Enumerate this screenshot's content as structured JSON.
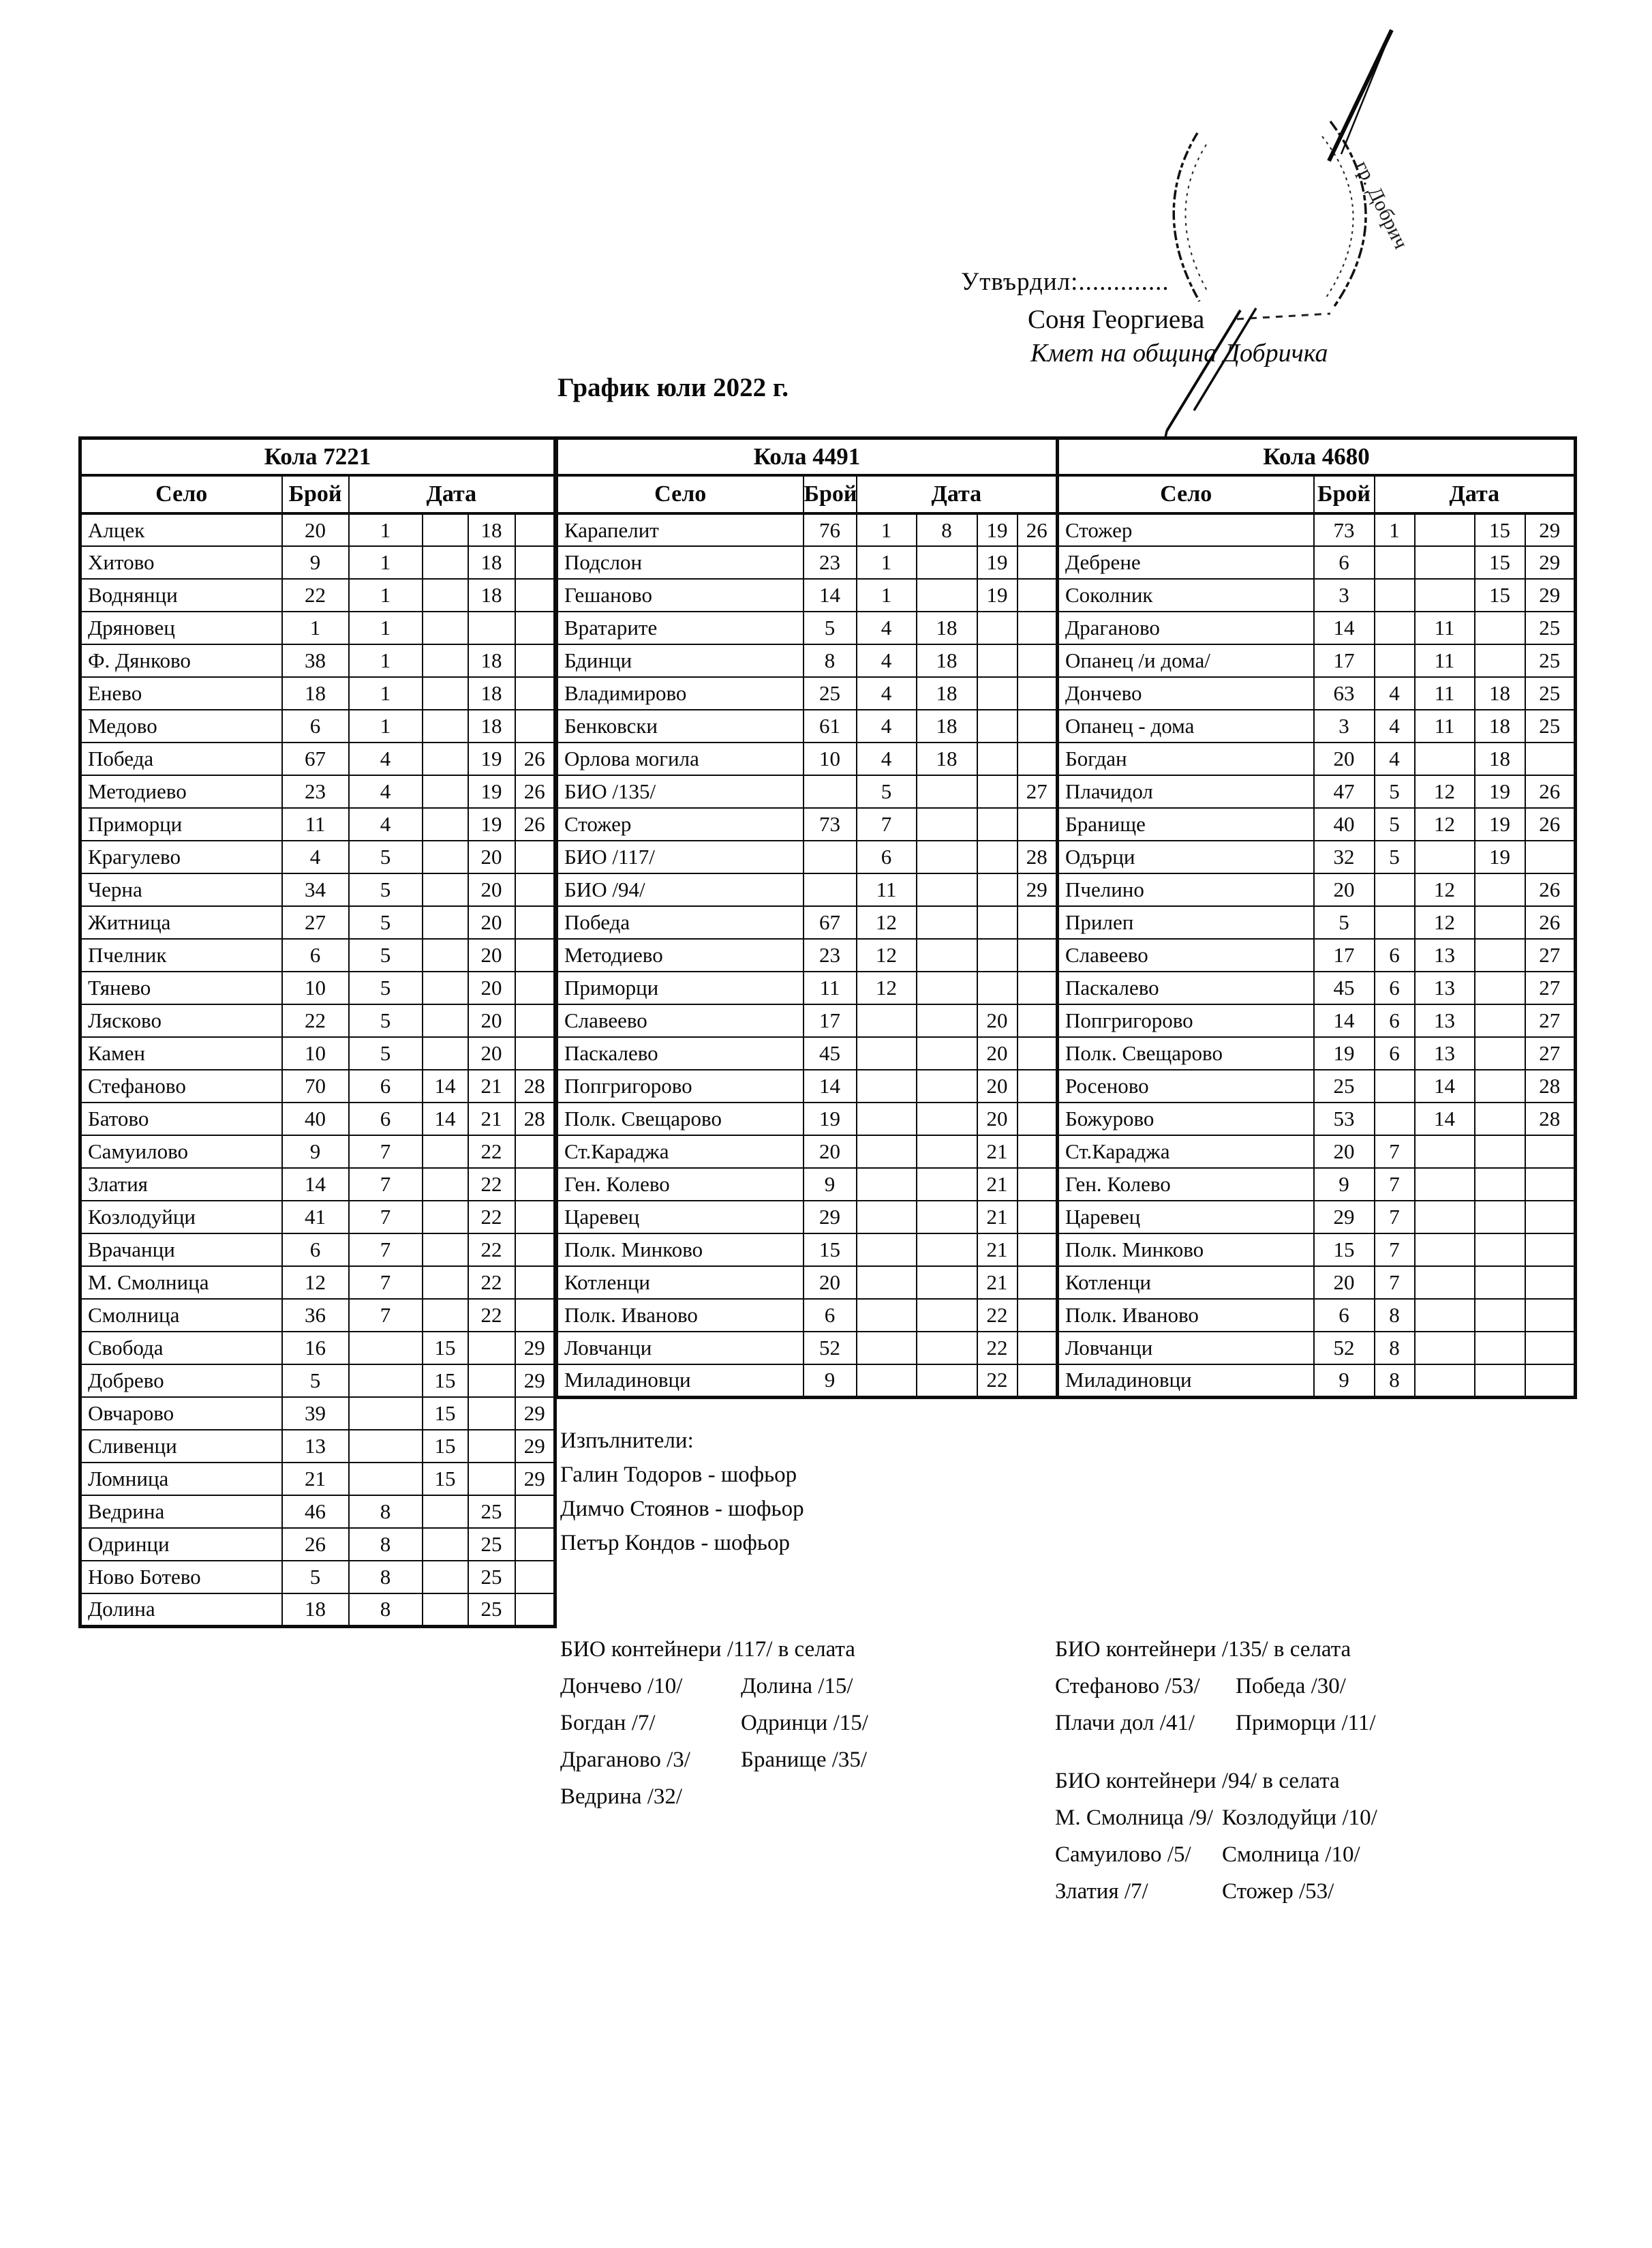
{
  "header": {
    "approved_label": "Утвърдил:.............",
    "approver_name": "Соня Георгиева",
    "approver_title": "Кмет  на община Добричка",
    "stamp_text": "гр. Добрич"
  },
  "title": "График юли 2022 г.",
  "table": {
    "headers": {
      "village": "Село",
      "count": "Брой",
      "date": "Дата"
    },
    "sections": [
      {
        "car": "Кола 7221",
        "rows": [
          [
            "Алцек",
            "20",
            "1",
            "",
            "18",
            ""
          ],
          [
            "Хитово",
            "9",
            "1",
            "",
            "18",
            ""
          ],
          [
            "Воднянци",
            "22",
            "1",
            "",
            "18",
            ""
          ],
          [
            "Дряновец",
            "1",
            "1",
            "",
            "",
            ""
          ],
          [
            "Ф. Дянково",
            "38",
            "1",
            "",
            "18",
            ""
          ],
          [
            "Енево",
            "18",
            "1",
            "",
            "18",
            ""
          ],
          [
            "Медово",
            "6",
            "1",
            "",
            "18",
            ""
          ],
          [
            "Победа",
            "67",
            "4",
            "",
            "19",
            "26"
          ],
          [
            "Методиево",
            "23",
            "4",
            "",
            "19",
            "26"
          ],
          [
            "Приморци",
            "11",
            "4",
            "",
            "19",
            "26"
          ],
          [
            "Крагулево",
            "4",
            "5",
            "",
            "20",
            ""
          ],
          [
            "Черна",
            "34",
            "5",
            "",
            "20",
            ""
          ],
          [
            "Житница",
            "27",
            "5",
            "",
            "20",
            ""
          ],
          [
            "Пчелник",
            "6",
            "5",
            "",
            "20",
            ""
          ],
          [
            "Тянево",
            "10",
            "5",
            "",
            "20",
            ""
          ],
          [
            "Лясково",
            "22",
            "5",
            "",
            "20",
            ""
          ],
          [
            "Камен",
            "10",
            "5",
            "",
            "20",
            ""
          ],
          [
            "Стефаново",
            "70",
            "6",
            "14",
            "21",
            "28"
          ],
          [
            "Батово",
            "40",
            "6",
            "14",
            "21",
            "28"
          ],
          [
            "Самуилово",
            "9",
            "7",
            "",
            "22",
            ""
          ],
          [
            "Златия",
            "14",
            "7",
            "",
            "22",
            ""
          ],
          [
            "Козлодуйци",
            "41",
            "7",
            "",
            "22",
            ""
          ],
          [
            "Врачанци",
            "6",
            "7",
            "",
            "22",
            ""
          ],
          [
            "М. Смолница",
            "12",
            "7",
            "",
            "22",
            ""
          ],
          [
            "Смолница",
            "36",
            "7",
            "",
            "22",
            ""
          ],
          [
            "Свобода",
            "16",
            "",
            "15",
            "",
            "29"
          ],
          [
            "Добрево",
            "5",
            "",
            "15",
            "",
            "29"
          ],
          [
            "Овчарово",
            "39",
            "",
            "15",
            "",
            "29"
          ],
          [
            "Сливенци",
            "13",
            "",
            "15",
            "",
            "29"
          ],
          [
            "Ломница",
            "21",
            "",
            "15",
            "",
            "29"
          ],
          [
            "Ведрина",
            "46",
            "8",
            "",
            "25",
            ""
          ],
          [
            "Одринци",
            "26",
            "8",
            "",
            "25",
            ""
          ],
          [
            "Ново Ботево",
            "5",
            "8",
            "",
            "25",
            ""
          ],
          [
            "Долина",
            "18",
            "8",
            "",
            "25",
            ""
          ]
        ]
      },
      {
        "car": "Кола 4491",
        "rows": [
          [
            "Карапелит",
            "76",
            "1",
            "8",
            "19",
            "26"
          ],
          [
            "Подслон",
            "23",
            "1",
            "",
            "19",
            ""
          ],
          [
            "Гешаново",
            "14",
            "1",
            "",
            "19",
            ""
          ],
          [
            "Вратарите",
            "5",
            "4",
            "18",
            "",
            ""
          ],
          [
            "Бдинци",
            "8",
            "4",
            "18",
            "",
            ""
          ],
          [
            "Владимирово",
            "25",
            "4",
            "18",
            "",
            ""
          ],
          [
            "Бенковски",
            "61",
            "4",
            "18",
            "",
            ""
          ],
          [
            "Орлова могила",
            "10",
            "4",
            "18",
            "",
            ""
          ],
          [
            "БИО /135/",
            "",
            "5",
            "",
            "",
            "27"
          ],
          [
            "Стожер",
            "73",
            "7",
            "",
            "",
            ""
          ],
          [
            "БИО /117/",
            "",
            "6",
            "",
            "",
            "28"
          ],
          [
            "БИО /94/",
            "",
            "11",
            "",
            "",
            "29"
          ],
          [
            "Победа",
            "67",
            "12",
            "",
            "",
            ""
          ],
          [
            "Методиево",
            "23",
            "12",
            "",
            "",
            ""
          ],
          [
            "Приморци",
            "11",
            "12",
            "",
            "",
            ""
          ],
          [
            "Славеево",
            "17",
            "",
            "",
            "20",
            ""
          ],
          [
            "Паскалево",
            "45",
            "",
            "",
            "20",
            ""
          ],
          [
            "Попгригорово",
            "14",
            "",
            "",
            "20",
            ""
          ],
          [
            "Полк. Свещарово",
            "19",
            "",
            "",
            "20",
            ""
          ],
          [
            "Ст.Караджа",
            "20",
            "",
            "",
            "21",
            ""
          ],
          [
            "Ген. Колево",
            "9",
            "",
            "",
            "21",
            ""
          ],
          [
            "Царевец",
            "29",
            "",
            "",
            "21",
            ""
          ],
          [
            "Полк. Минково",
            "15",
            "",
            "",
            "21",
            ""
          ],
          [
            "Котленци",
            "20",
            "",
            "",
            "21",
            ""
          ],
          [
            "Полк. Иваново",
            "6",
            "",
            "",
            "22",
            ""
          ],
          [
            "Ловчанци",
            "52",
            "",
            "",
            "22",
            ""
          ],
          [
            "Миладиновци",
            "9",
            "",
            "",
            "22",
            ""
          ]
        ]
      },
      {
        "car": "Кола 4680",
        "rows": [
          [
            "Стожер",
            "73",
            "1",
            "",
            "15",
            "29"
          ],
          [
            "Дебрене",
            "6",
            "",
            "",
            "15",
            "29"
          ],
          [
            "Соколник",
            "3",
            "",
            "",
            "15",
            "29"
          ],
          [
            "Драганово",
            "14",
            "",
            "11",
            "",
            "25"
          ],
          [
            "Опанец /и дома/",
            "17",
            "",
            "11",
            "",
            "25"
          ],
          [
            "Дончево",
            "63",
            "4",
            "11",
            "18",
            "25"
          ],
          [
            "Опанец - дома",
            "3",
            "4",
            "11",
            "18",
            "25"
          ],
          [
            "Богдан",
            "20",
            "4",
            "",
            "18",
            ""
          ],
          [
            "Плачидол",
            "47",
            "5",
            "12",
            "19",
            "26"
          ],
          [
            "Бранище",
            "40",
            "5",
            "12",
            "19",
            "26"
          ],
          [
            "Одърци",
            "32",
            "5",
            "",
            "19",
            ""
          ],
          [
            "Пчелино",
            "20",
            "",
            "12",
            "",
            "26"
          ],
          [
            "Прилеп",
            "5",
            "",
            "12",
            "",
            "26"
          ],
          [
            "Славеево",
            "17",
            "6",
            "13",
            "",
            "27"
          ],
          [
            "Паскалево",
            "45",
            "6",
            "13",
            "",
            "27"
          ],
          [
            "Попгригорово",
            "14",
            "6",
            "13",
            "",
            "27"
          ],
          [
            "Полк. Свещарово",
            "19",
            "6",
            "13",
            "",
            "27"
          ],
          [
            "Росеново",
            "25",
            "",
            "14",
            "",
            "28"
          ],
          [
            "Божурово",
            "53",
            "",
            "14",
            "",
            "28"
          ],
          [
            "Ст.Караджа",
            "20",
            "7",
            "",
            "",
            ""
          ],
          [
            "Ген. Колево",
            "9",
            "7",
            "",
            "",
            ""
          ],
          [
            "Царевец",
            "29",
            "7",
            "",
            "",
            ""
          ],
          [
            "Полк. Минково",
            "15",
            "7",
            "",
            "",
            ""
          ],
          [
            "Котленци",
            "20",
            "7",
            "",
            "",
            ""
          ],
          [
            "Полк. Иваново",
            "6",
            "8",
            "",
            "",
            ""
          ],
          [
            "Ловчанци",
            "52",
            "8",
            "",
            "",
            ""
          ],
          [
            "Миладиновци",
            "9",
            "8",
            "",
            "",
            ""
          ]
        ]
      }
    ]
  },
  "executors": {
    "label": "Изпълнители:",
    "items": [
      "Галин Тодоров - шофьор",
      "Димчо Стоянов - шофьор",
      "Петър Кондов - шофьор"
    ]
  },
  "notes": [
    {
      "title": "БИО контейнери /117/ в селата",
      "col1": [
        "Дончево /10/",
        "Богдан /7/",
        "Драганово /3/",
        "Ведрина /32/"
      ],
      "col2": [
        "Долина /15/",
        "Одринци /15/",
        "Бранище /35/"
      ]
    },
    {
      "title": "БИО контейнери /135/ в селата",
      "col1": [
        "Стефаново /53/",
        "Плачи дол /41/"
      ],
      "col2": [
        "Победа /30/",
        "Приморци /11/"
      ]
    },
    {
      "title": "БИО контейнери /94/ в селата",
      "col1": [
        "М. Смолница /9/",
        "Самуилово /5/",
        "Златия /7/"
      ],
      "col2": [
        "Козлодуйци /10/",
        "Смолница /10/",
        "Стожер /53/"
      ]
    }
  ]
}
